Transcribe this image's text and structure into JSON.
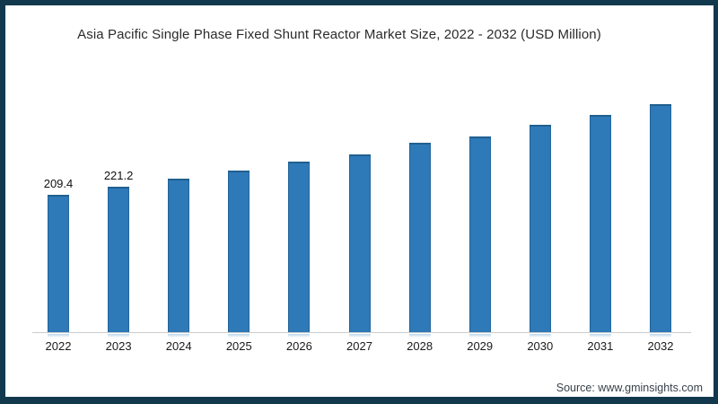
{
  "chart": {
    "title": "Asia Pacific Single Phase Fixed Shunt Reactor Market Size, 2022 - 2032 (USD Million)",
    "source": "Source: www.gminsights.com"
  },
  "chart_data": {
    "type": "bar",
    "title": "Asia Pacific Single Phase Fixed Shunt Reactor Market Size, 2022 - 2032 (USD Million)",
    "unit": "USD Million",
    "categories": [
      "2022",
      "2023",
      "2024",
      "2025",
      "2026",
      "2027",
      "2028",
      "2029",
      "2030",
      "2031",
      "2032"
    ],
    "values": [
      209.4,
      221.2,
      233.8,
      246.2,
      259.8,
      270.8,
      288.6,
      298.1,
      315.9,
      331.0,
      347.4
    ],
    "data_labels": [
      "209.4",
      "221.2",
      null,
      null,
      null,
      null,
      null,
      null,
      null,
      null,
      null
    ],
    "xlabel": "",
    "ylabel": "",
    "ylim": [
      0,
      380
    ],
    "grid": false,
    "legend_position": "none",
    "colors": {
      "bar_fill": "#2e79b8",
      "bar_edge": "#20608f",
      "frame_border": "#12384e",
      "axis_line": "#cccccc",
      "title_text": "#2b2b2b",
      "tick_text": "#1a1a1a",
      "source_text": "#37424a",
      "background": "#ffffff",
      "reflection": "#a9cce6"
    }
  }
}
